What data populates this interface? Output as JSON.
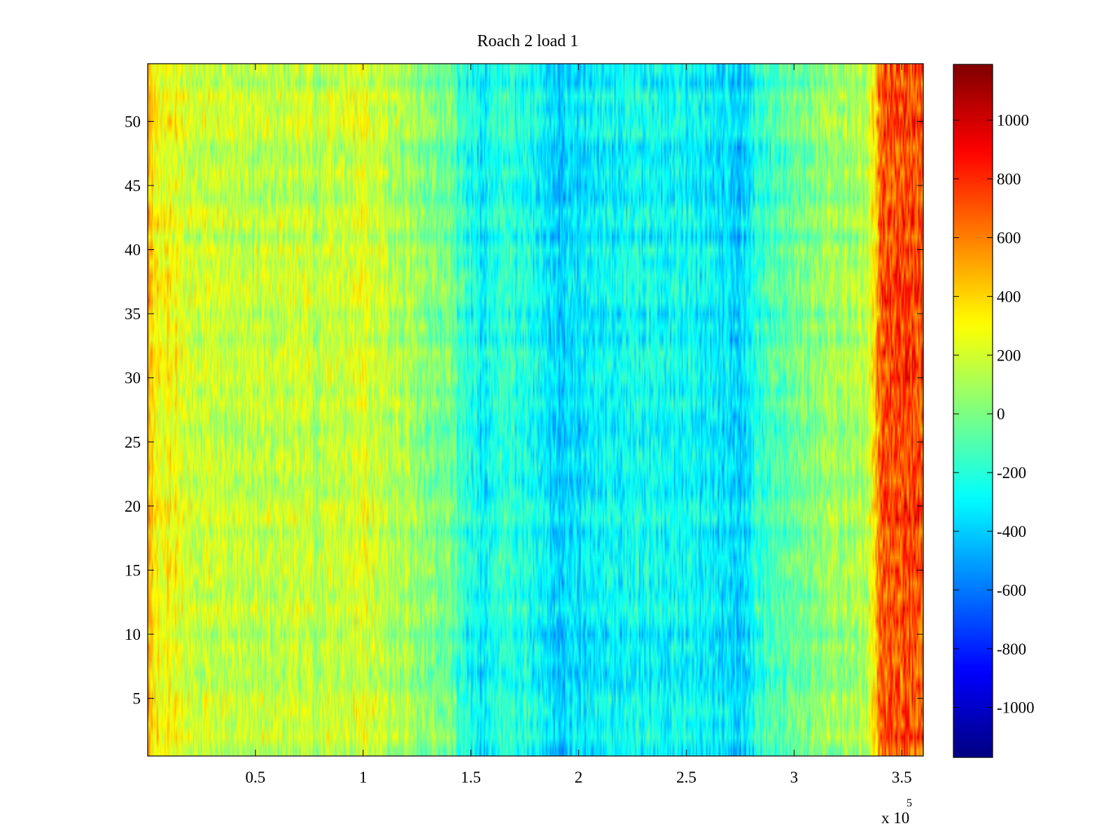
{
  "chart_data": {
    "type": "heatmap",
    "title": "Roach 2 load 1",
    "xlabel": "",
    "ylabel": "",
    "x_multiplier": "x 10",
    "x_multiplier_exponent": "5",
    "xlim": [
      0,
      360000
    ],
    "ylim": [
      0.5,
      54.5
    ],
    "rows": 54,
    "columns": 600,
    "x_ticks": [
      {
        "value": 50000,
        "label": "0.5"
      },
      {
        "value": 100000,
        "label": "1"
      },
      {
        "value": 150000,
        "label": "1.5"
      },
      {
        "value": 200000,
        "label": "2"
      },
      {
        "value": 250000,
        "label": "2.5"
      },
      {
        "value": 300000,
        "label": "3"
      },
      {
        "value": 350000,
        "label": "3.5"
      }
    ],
    "y_ticks": [
      {
        "value": 5,
        "label": "5"
      },
      {
        "value": 10,
        "label": "10"
      },
      {
        "value": 15,
        "label": "15"
      },
      {
        "value": 20,
        "label": "20"
      },
      {
        "value": 25,
        "label": "25"
      },
      {
        "value": 30,
        "label": "30"
      },
      {
        "value": 35,
        "label": "35"
      },
      {
        "value": 40,
        "label": "40"
      },
      {
        "value": 45,
        "label": "45"
      },
      {
        "value": 50,
        "label": "50"
      }
    ],
    "colorbar": {
      "colormap": "jet",
      "clim": [
        -1170,
        1190
      ],
      "ticks": [
        {
          "value": 1000,
          "label": "1000"
        },
        {
          "value": 800,
          "label": "800"
        },
        {
          "value": 600,
          "label": "600"
        },
        {
          "value": 400,
          "label": "400"
        },
        {
          "value": 200,
          "label": "200"
        },
        {
          "value": 0,
          "label": "0"
        },
        {
          "value": -200,
          "label": "-200"
        },
        {
          "value": -400,
          "label": "-400"
        },
        {
          "value": -600,
          "label": "-600"
        },
        {
          "value": -800,
          "label": "-800"
        },
        {
          "value": -1000,
          "label": "-1000"
        }
      ]
    },
    "column_profile": [
      {
        "x": 0,
        "mean": 480
      },
      {
        "x": 3000,
        "mean": 330
      },
      {
        "x": 20000,
        "mean": 190
      },
      {
        "x": 50000,
        "mean": 140
      },
      {
        "x": 80000,
        "mean": 140
      },
      {
        "x": 100000,
        "mean": 200
      },
      {
        "x": 120000,
        "mean": 100
      },
      {
        "x": 140000,
        "mean": -60
      },
      {
        "x": 152000,
        "mean": -250
      },
      {
        "x": 156000,
        "mean": -370
      },
      {
        "x": 160000,
        "mean": -190
      },
      {
        "x": 175000,
        "mean": -220
      },
      {
        "x": 190000,
        "mean": -410
      },
      {
        "x": 210000,
        "mean": -310
      },
      {
        "x": 230000,
        "mean": -260
      },
      {
        "x": 255000,
        "mean": -300
      },
      {
        "x": 275000,
        "mean": -390
      },
      {
        "x": 282000,
        "mean": -220
      },
      {
        "x": 300000,
        "mean": -40
      },
      {
        "x": 320000,
        "mean": 60
      },
      {
        "x": 334000,
        "mean": 120
      },
      {
        "x": 338000,
        "mean": 420
      },
      {
        "x": 340000,
        "mean": 720
      },
      {
        "x": 360000,
        "mean": 720
      }
    ]
  }
}
